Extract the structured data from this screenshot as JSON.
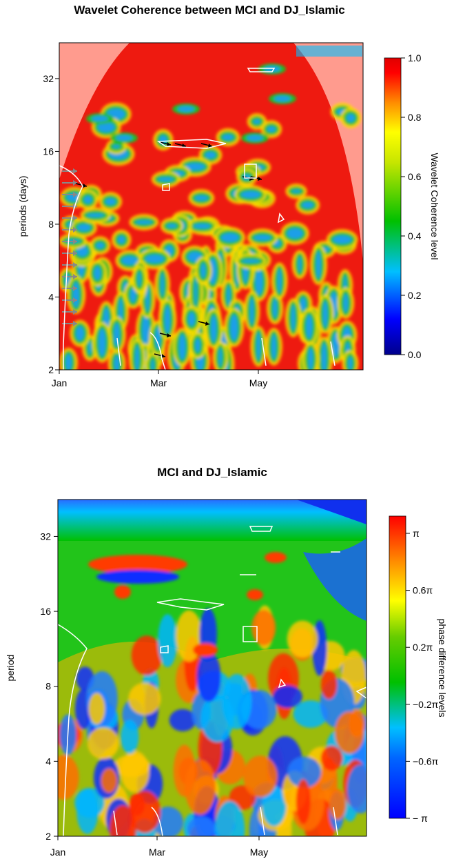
{
  "chart_data": [
    {
      "type": "heatmap",
      "title": "Wavelet Coherence between MCI and DJ_Islamic",
      "xlabel": "",
      "ylabel": "periods (days)",
      "x_ticks": [
        "Jan",
        "Mar",
        "May"
      ],
      "y_ticks": [
        2,
        4,
        8,
        16,
        32
      ],
      "y_scale": "log2",
      "ylim": [
        2,
        45
      ],
      "legend": {
        "title": "Wavelet Coherence level",
        "placement": "right",
        "ticks": [
          "0.0",
          "0.2",
          "0.4",
          "0.6",
          "0.8",
          "1.0"
        ],
        "range": [
          0,
          1
        ],
        "colors": [
          "#00008b",
          "#0000ff",
          "#00bfff",
          "#00c000",
          "#ffff00",
          "#ff8c00",
          "#ff0000",
          "#e00000"
        ]
      },
      "cone_of_influence": true,
      "phase_arrows": true,
      "background_value": 0.95
    },
    {
      "type": "heatmap",
      "title": "MCI and DJ_Islamic",
      "xlabel": "",
      "ylabel": "period",
      "x_ticks": [
        "Jan",
        "Mar",
        "May"
      ],
      "y_ticks": [
        2,
        4,
        8,
        16,
        32
      ],
      "y_scale": "log2",
      "ylim": [
        2,
        45
      ],
      "legend": {
        "title": "phase difference levels",
        "placement": "right",
        "ticks": [
          "π",
          "0.6π",
          "0.2π",
          "−0.2π",
          "−0.6π",
          "− π"
        ],
        "range": [
          "−π",
          "π"
        ],
        "colors": [
          "#0000ff",
          "#00bfff",
          "#00c000",
          "#ffff00",
          "#ff8c00",
          "#ff0000"
        ]
      },
      "significance_contours": true
    }
  ]
}
